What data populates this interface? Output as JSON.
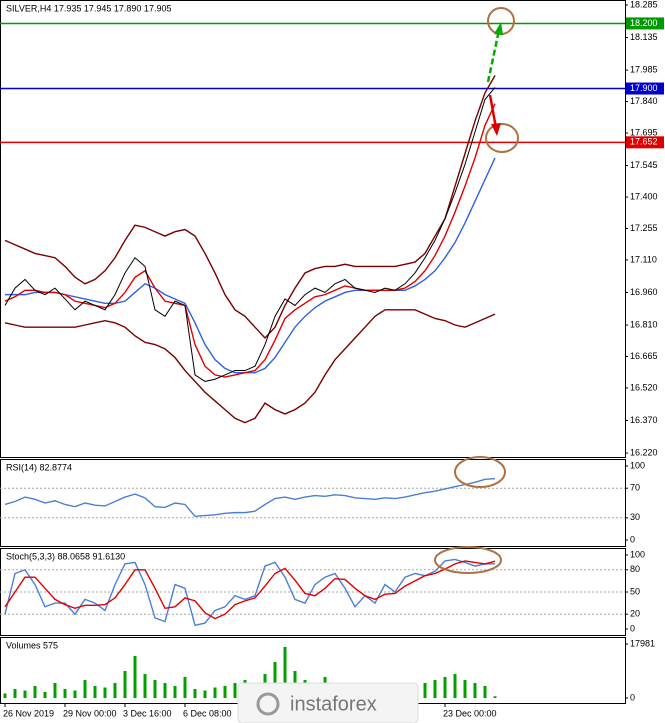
{
  "watermark": "instaforex",
  "chart_data": [
    {
      "type": "line",
      "title": "SILVER,H4  17.935 17.945 17.890 17.905",
      "categories": [
        "26 Nov 2019",
        null,
        null,
        null,
        null,
        null,
        "29 Nov 00:00",
        null,
        null,
        null,
        null,
        null,
        "3 Dec 16:00",
        null,
        null,
        null,
        null,
        null,
        "6 Dec 08:00",
        null,
        null,
        null,
        null,
        null,
        null,
        null,
        null,
        null,
        null,
        null,
        null,
        null,
        null,
        null,
        null,
        null,
        null,
        null,
        null,
        null,
        null,
        null,
        null,
        null,
        "23 Dec 00:00",
        null,
        null,
        null,
        null,
        null
      ],
      "ylim": [
        16.22,
        18.285
      ],
      "yticks": [
        {
          "value": 16.22,
          "label": "16.220"
        },
        {
          "value": 16.37,
          "label": "16.370"
        },
        {
          "value": 16.52,
          "label": "16.520"
        },
        16.665,
        {
          "value": 16.81,
          "label": "16.810"
        },
        {
          "value": 16.96,
          "label": "16.960"
        },
        {
          "value": 17.11,
          "label": "17.110"
        },
        17.255,
        {
          "value": 17.4,
          "label": "17.400"
        },
        17.545,
        17.695,
        {
          "value": 17.84,
          "label": "17.840"
        },
        17.985,
        18.135,
        18.285
      ],
      "levels": [
        {
          "value": 18.2,
          "label": "18.200",
          "color": "#009900"
        },
        {
          "value": 17.9,
          "label": "17.900",
          "color": "#0000cc"
        },
        {
          "value": 17.652,
          "label": "17.652",
          "color": "#dd0000"
        }
      ],
      "series": [
        {
          "color": "#7a0000",
          "values": [
            17.2,
            17.18,
            17.16,
            17.14,
            17.13,
            17.12,
            17.08,
            17.03,
            17.0,
            17.02,
            17.06,
            17.12,
            17.2,
            17.27,
            17.26,
            17.24,
            17.22,
            17.24,
            17.25,
            17.22,
            17.14,
            17.05,
            16.95,
            16.88,
            16.85,
            16.8,
            16.75,
            16.8,
            16.9,
            16.98,
            17.05,
            17.07,
            17.08,
            17.08,
            17.09,
            17.08,
            17.08,
            17.08,
            17.08,
            17.08,
            17.09,
            17.1,
            17.14,
            17.22,
            17.3,
            17.45,
            17.6,
            17.75,
            17.88,
            17.96
          ]
        },
        {
          "color": "#7a0000",
          "values": [
            16.82,
            16.81,
            16.8,
            16.8,
            16.8,
            16.8,
            16.8,
            16.8,
            16.81,
            16.82,
            16.83,
            16.82,
            16.8,
            16.76,
            16.73,
            16.72,
            16.7,
            16.66,
            16.6,
            16.55,
            16.5,
            16.46,
            16.42,
            16.38,
            16.36,
            16.38,
            16.45,
            16.42,
            16.4,
            16.42,
            16.45,
            16.5,
            16.58,
            16.65,
            16.7,
            16.75,
            16.8,
            16.85,
            16.88,
            16.88,
            16.88,
            16.88,
            16.86,
            16.84,
            16.83,
            16.81,
            16.8,
            16.82,
            16.84,
            16.86
          ]
        },
        {
          "color": "#3060e0",
          "values": [
            16.95,
            16.95,
            16.95,
            16.96,
            16.96,
            16.96,
            16.95,
            16.94,
            16.93,
            16.92,
            16.91,
            16.91,
            16.92,
            16.96,
            17.0,
            16.98,
            16.95,
            16.93,
            16.91,
            16.82,
            16.72,
            16.65,
            16.61,
            16.59,
            16.59,
            16.59,
            16.61,
            16.66,
            16.73,
            16.8,
            16.85,
            16.89,
            16.92,
            16.94,
            16.96,
            16.97,
            16.97,
            16.97,
            16.97,
            16.97,
            16.97,
            16.99,
            17.02,
            17.06,
            17.12,
            17.19,
            17.28,
            17.38,
            17.48,
            17.58
          ]
        },
        {
          "color": "#e00000",
          "values": [
            16.92,
            16.94,
            16.97,
            16.97,
            16.96,
            16.96,
            16.95,
            16.92,
            16.91,
            16.9,
            16.89,
            16.91,
            16.96,
            17.03,
            17.06,
            16.98,
            16.92,
            16.91,
            16.9,
            16.72,
            16.62,
            16.58,
            16.57,
            16.58,
            16.59,
            16.6,
            16.65,
            16.74,
            16.84,
            16.88,
            16.91,
            16.94,
            16.95,
            16.97,
            16.99,
            16.98,
            16.97,
            16.97,
            16.97,
            16.97,
            16.98,
            17.01,
            17.06,
            17.13,
            17.22,
            17.33,
            17.45,
            17.58,
            17.73,
            17.83
          ]
        },
        {
          "color": "#000000",
          "values": [
            16.9,
            16.98,
            17.02,
            16.97,
            16.95,
            16.98,
            16.93,
            16.88,
            16.92,
            16.9,
            16.88,
            16.95,
            17.05,
            17.12,
            17.08,
            16.88,
            16.85,
            16.92,
            16.9,
            16.58,
            16.55,
            16.56,
            16.58,
            16.6,
            16.6,
            16.62,
            16.72,
            16.85,
            16.93,
            16.9,
            16.95,
            16.98,
            16.96,
            17.0,
            17.02,
            16.98,
            16.97,
            16.96,
            16.98,
            16.97,
            17.0,
            17.05,
            17.12,
            17.2,
            17.3,
            17.42,
            17.55,
            17.7,
            17.85,
            17.905
          ]
        }
      ]
    },
    {
      "type": "line",
      "title": "RSI(14) 82.8774",
      "ylim": [
        0,
        100
      ],
      "yticks": [
        0,
        30,
        70,
        100
      ],
      "grid": true,
      "series": [
        {
          "color": "#4a7fd8",
          "values": [
            48,
            52,
            58,
            55,
            50,
            53,
            48,
            45,
            50,
            47,
            46,
            52,
            58,
            62,
            57,
            45,
            44,
            50,
            48,
            32,
            33,
            34,
            36,
            37,
            37,
            39,
            48,
            56,
            58,
            55,
            58,
            60,
            59,
            61,
            60,
            57,
            56,
            55,
            57,
            56,
            58,
            61,
            64,
            66,
            69,
            72,
            75,
            78,
            82,
            82.8774
          ]
        }
      ]
    },
    {
      "type": "line",
      "title": "Stoch(5,3,3) 88.0658 91.6130",
      "ylim": [
        0,
        100
      ],
      "yticks": [
        0,
        20,
        50,
        80,
        100
      ],
      "grid": true,
      "series": [
        {
          "color": "#4a7fd8",
          "values": [
            20,
            75,
            80,
            60,
            30,
            35,
            35,
            20,
            40,
            35,
            25,
            60,
            88,
            90,
            60,
            15,
            10,
            60,
            55,
            5,
            8,
            25,
            30,
            45,
            40,
            45,
            85,
            90,
            70,
            40,
            35,
            60,
            70,
            75,
            55,
            30,
            45,
            35,
            60,
            50,
            70,
            75,
            72,
            78,
            92,
            94,
            90,
            85,
            88,
            88.0658
          ]
        },
        {
          "color": "#e00000",
          "values": [
            30,
            50,
            70,
            70,
            55,
            40,
            33,
            28,
            32,
            32,
            33,
            42,
            60,
            80,
            80,
            55,
            28,
            30,
            42,
            38,
            22,
            14,
            20,
            33,
            38,
            42,
            58,
            75,
            82,
            66,
            48,
            45,
            55,
            68,
            67,
            55,
            45,
            40,
            47,
            48,
            58,
            65,
            72,
            75,
            81,
            88,
            92,
            90,
            88,
            91.613
          ]
        }
      ]
    },
    {
      "type": "bar",
      "title": "Volumes 575",
      "ylim": [
        0,
        17981
      ],
      "yticks": [
        0,
        17981
      ],
      "color": "#00a000",
      "values": [
        1500,
        3000,
        2500,
        4000,
        2000,
        5000,
        3000,
        2500,
        6000,
        4000,
        3500,
        5000,
        9000,
        14000,
        8000,
        6000,
        5000,
        4000,
        7000,
        3000,
        2500,
        3500,
        4000,
        5000,
        6000,
        4500,
        8000,
        12000,
        17000,
        9000,
        6000,
        5000,
        7000,
        4000,
        3000,
        2500,
        3000,
        3500,
        4000,
        2500,
        3000,
        4500,
        5000,
        6000,
        7000,
        8000,
        6000,
        5000,
        4000,
        575
      ]
    }
  ]
}
